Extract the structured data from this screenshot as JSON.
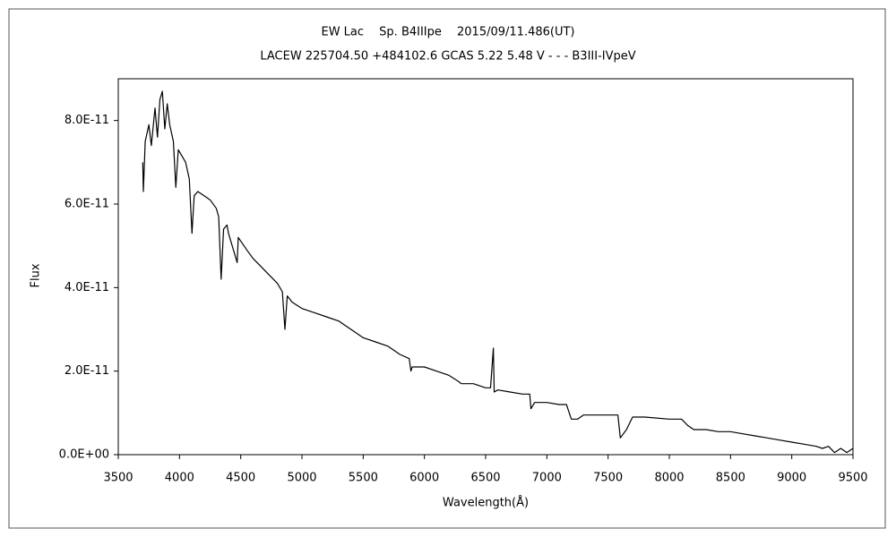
{
  "chart_data": {
    "type": "line",
    "title": "EW Lac　 Sp. B4IIIpe　 2015/09/11.486(UT)",
    "subtitle": "LACEW 225704.50 +484102.6 GCAS 5.22 5.48 V - - - B3III-IVpeV",
    "x_label": "Wavelength(Å)",
    "y_label": "Flux",
    "color": "#000000",
    "xlim": [
      3500,
      9500
    ],
    "ylim": [
      0,
      9e-11
    ],
    "xticks": [
      3500,
      4000,
      4500,
      5000,
      5500,
      6000,
      6500,
      7000,
      7500,
      8000,
      8500,
      9000,
      9500
    ],
    "yticks": [
      {
        "value": 0,
        "label": "0.0E+00"
      },
      {
        "value": 2e-11,
        "label": "2.0E-11"
      },
      {
        "value": 4e-11,
        "label": "4.0E-11"
      },
      {
        "value": 6e-11,
        "label": "6.0E-11"
      },
      {
        "value": 8e-11,
        "label": "8.0E-11"
      }
    ],
    "x": [
      3700,
      3705,
      3720,
      3750,
      3770,
      3800,
      3820,
      3840,
      3860,
      3880,
      3900,
      3920,
      3950,
      3970,
      3990,
      4050,
      4080,
      4102,
      4120,
      4150,
      4200,
      4250,
      4300,
      4320,
      4340,
      4360,
      4388,
      4400,
      4471,
      4480,
      4550,
      4600,
      4700,
      4800,
      4840,
      4861,
      4880,
      4920,
      5000,
      5100,
      5200,
      5300,
      5400,
      5500,
      5600,
      5700,
      5800,
      5876,
      5890,
      5900,
      6000,
      6100,
      6200,
      6280,
      6300,
      6400,
      6500,
      6540,
      6563,
      6570,
      6600,
      6700,
      6800,
      6860,
      6870,
      6900,
      7000,
      7100,
      7160,
      7200,
      7250,
      7300,
      7400,
      7500,
      7580,
      7600,
      7650,
      7700,
      7800,
      8000,
      8100,
      8150,
      8200,
      8300,
      8400,
      8500,
      8600,
      8700,
      8800,
      8900,
      9000,
      9100,
      9200,
      9250,
      9300,
      9350,
      9400,
      9450,
      9500
    ],
    "values": [
      7e-11,
      6.3e-11,
      7.5e-11,
      7.9e-11,
      7.4e-11,
      8.3e-11,
      7.6e-11,
      8.5e-11,
      8.7e-11,
      7.8e-11,
      8.4e-11,
      7.9e-11,
      7.5e-11,
      6.4e-11,
      7.3e-11,
      7e-11,
      6.6e-11,
      5.3e-11,
      6.2e-11,
      6.3e-11,
      6.2e-11,
      6.1e-11,
      5.9e-11,
      5.7e-11,
      4.2e-11,
      5.4e-11,
      5.5e-11,
      5.3e-11,
      4.6e-11,
      5.2e-11,
      4.9e-11,
      4.7e-11,
      4.4e-11,
      4.1e-11,
      3.9e-11,
      3e-11,
      3.8e-11,
      3.65e-11,
      3.5e-11,
      3.4e-11,
      3.3e-11,
      3.2e-11,
      3e-11,
      2.8e-11,
      2.7e-11,
      2.6e-11,
      2.4e-11,
      2.3e-11,
      2e-11,
      2.1e-11,
      2.1e-11,
      2e-11,
      1.9e-11,
      1.75e-11,
      1.7e-11,
      1.7e-11,
      1.6e-11,
      1.6e-11,
      2.55e-11,
      1.5e-11,
      1.55e-11,
      1.5e-11,
      1.45e-11,
      1.45e-11,
      1.1e-11,
      1.25e-11,
      1.25e-11,
      1.2e-11,
      1.2e-11,
      8.5e-12,
      8.5e-12,
      9.5e-12,
      9.5e-12,
      9.5e-12,
      9.5e-12,
      4e-12,
      6e-12,
      9e-12,
      9e-12,
      8.5e-12,
      8.5e-12,
      7e-12,
      6e-12,
      6e-12,
      5.5e-12,
      5.5e-12,
      5e-12,
      4.5e-12,
      4e-12,
      3.5e-12,
      3e-12,
      2.5e-12,
      2e-12,
      1.5e-12,
      2e-12,
      5e-13,
      1.5e-12,
      5e-13,
      1.5e-12
    ]
  }
}
